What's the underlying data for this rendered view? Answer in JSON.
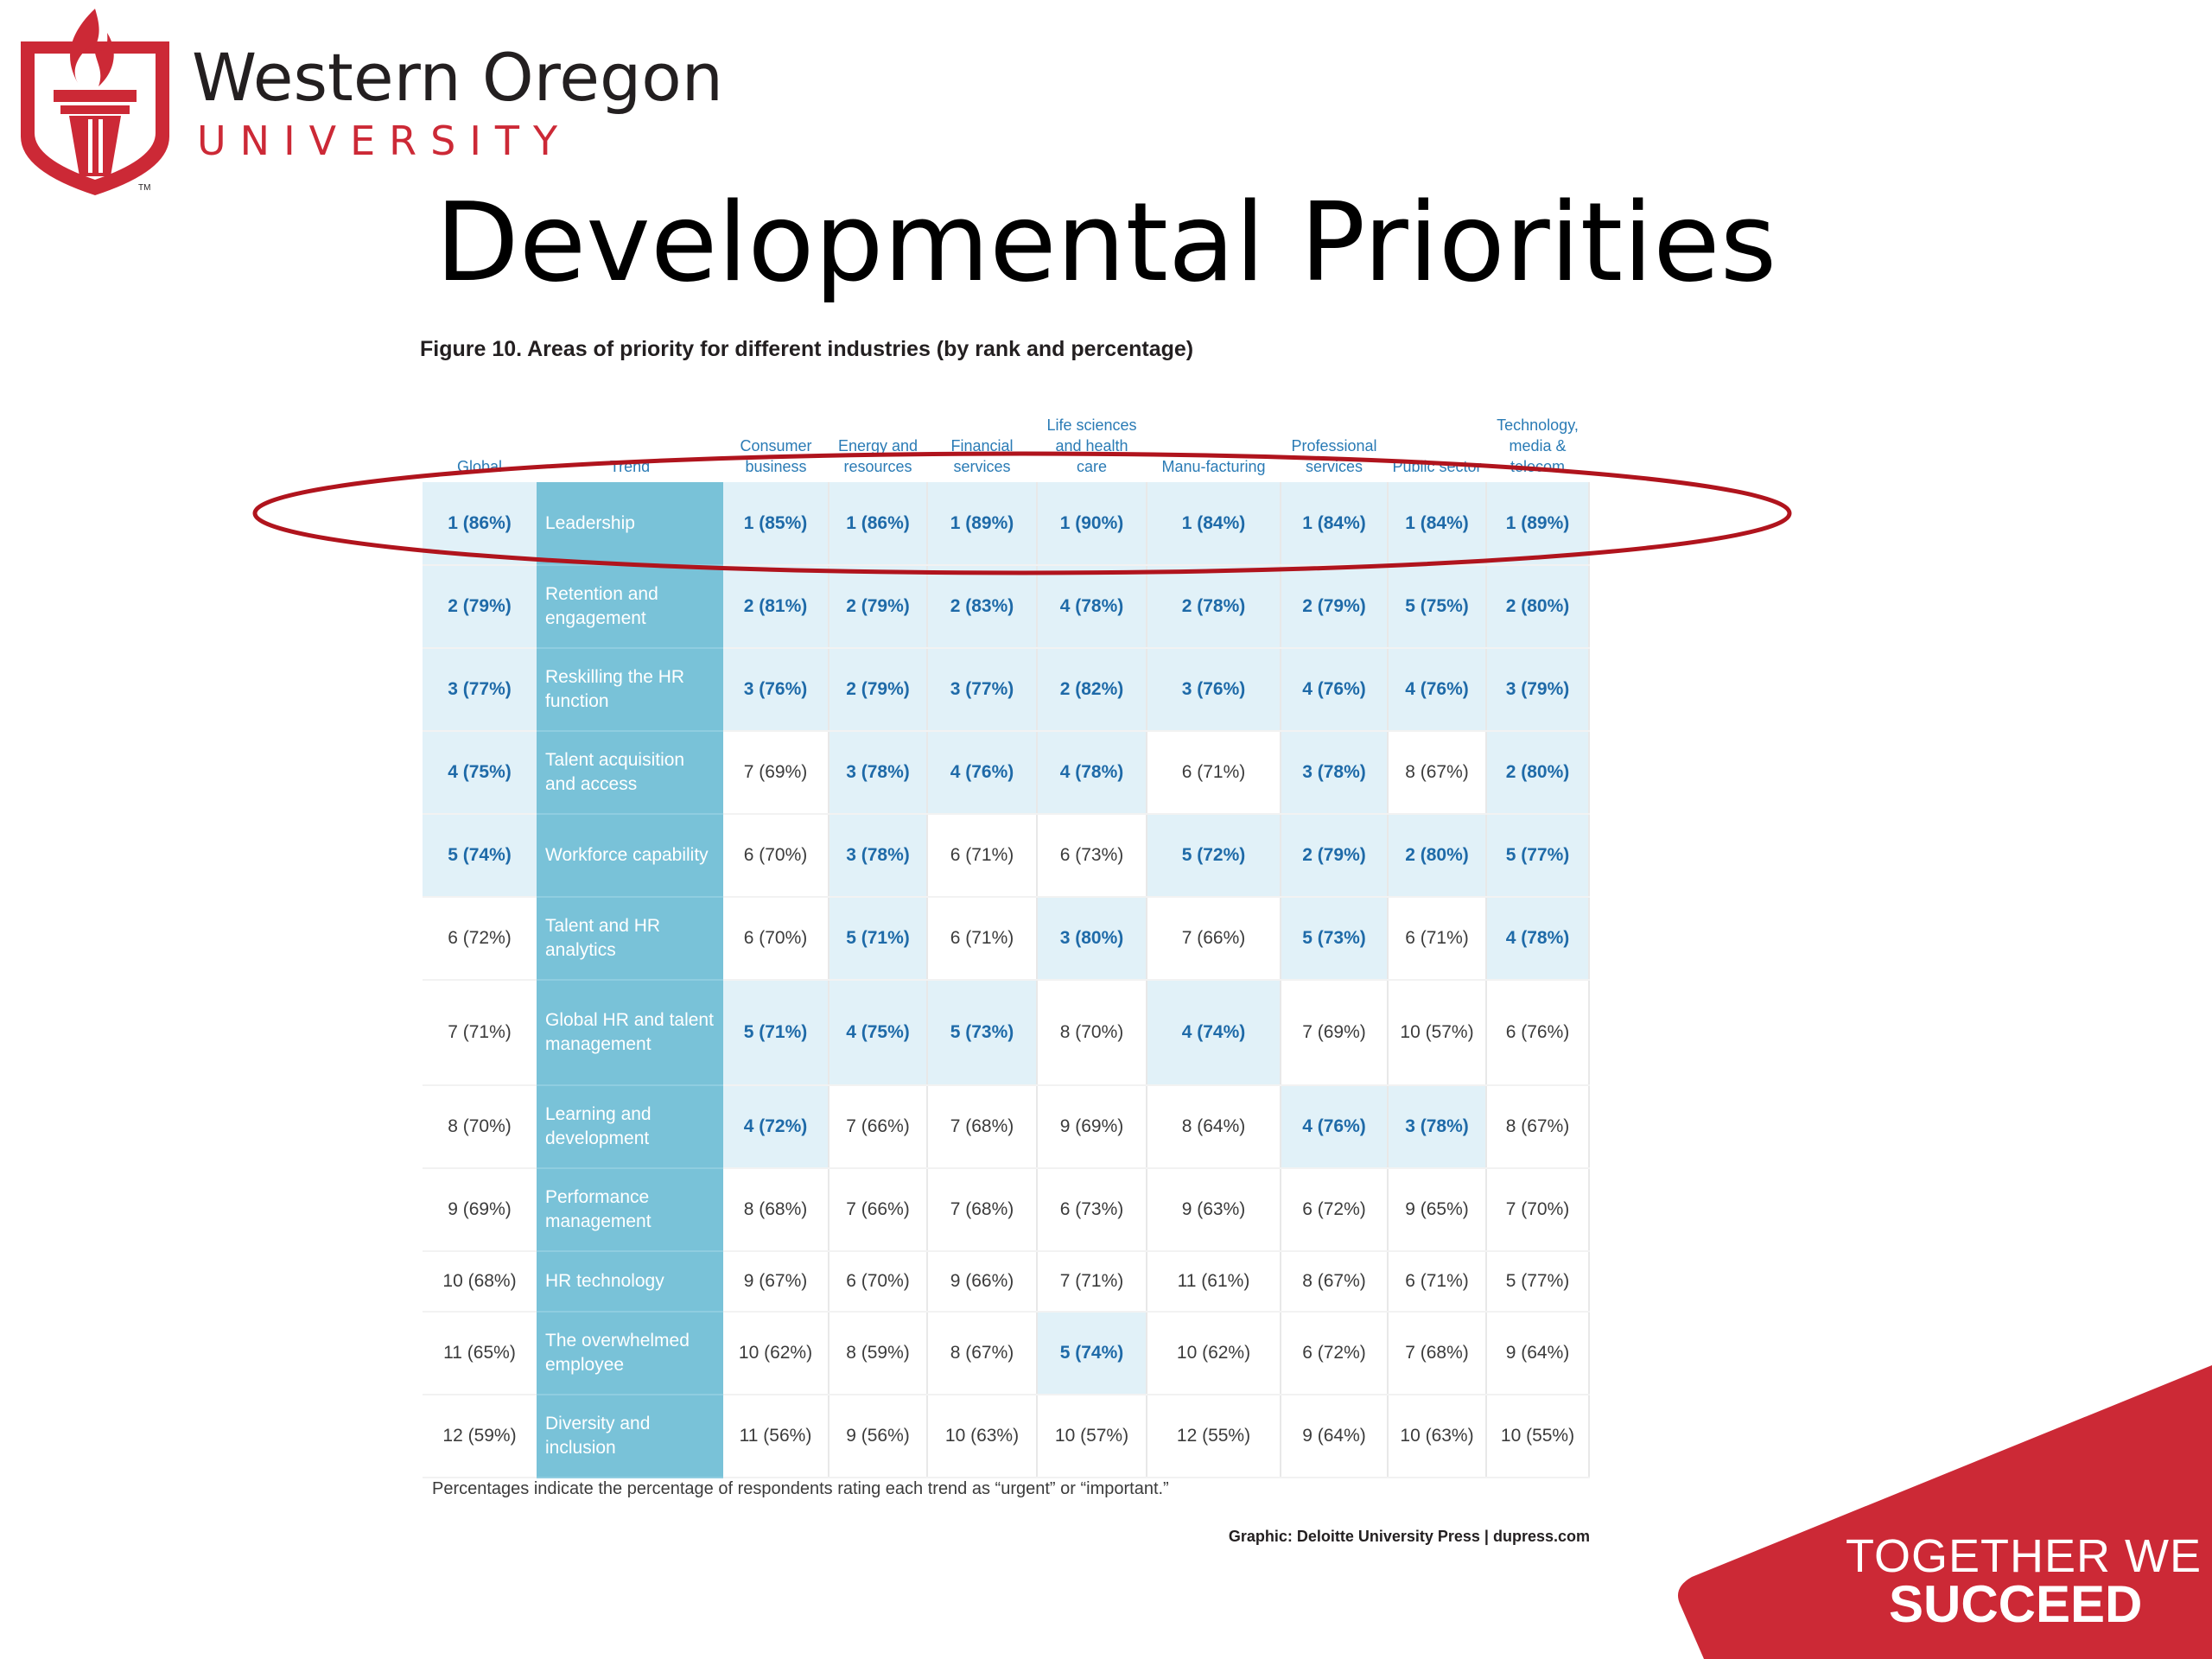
{
  "logo": {
    "name": "Western Oregon",
    "sub": "UNIVERSITY",
    "tm": "TM",
    "icon": "torch-shield-icon",
    "color": "#cc2936"
  },
  "title": "Developmental Priorities",
  "figure": {
    "caption": "Figure 10. Areas of priority for different industries (by rank and percentage)",
    "headers": {
      "global": "Global",
      "trend": "Trend",
      "industries": [
        "Consumer business",
        "Energy and resources",
        "Financial services",
        "Life sciences and health care",
        "Manu-facturing",
        "Professional services",
        "Public sector",
        "Technology, media & telecom"
      ]
    },
    "rows": [
      {
        "global": "1 (86%)",
        "global_hl": true,
        "trend": "Leadership",
        "cells": [
          "1 (85%)",
          "1 (86%)",
          "1 (89%)",
          "1 (90%)",
          "1 (84%)",
          "1 (84%)",
          "1 (84%)",
          "1 (89%)"
        ],
        "hl": [
          true,
          true,
          true,
          true,
          true,
          true,
          true,
          true
        ]
      },
      {
        "global": "2 (79%)",
        "global_hl": true,
        "trend": "Retention and engagement",
        "cells": [
          "2 (81%)",
          "2 (79%)",
          "2 (83%)",
          "4 (78%)",
          "2 (78%)",
          "2 (79%)",
          "5 (75%)",
          "2 (80%)"
        ],
        "hl": [
          true,
          true,
          true,
          true,
          true,
          true,
          true,
          true
        ]
      },
      {
        "global": "3 (77%)",
        "global_hl": true,
        "trend": "Reskilling the HR function",
        "cells": [
          "3 (76%)",
          "2 (79%)",
          "3 (77%)",
          "2 (82%)",
          "3 (76%)",
          "4 (76%)",
          "4 (76%)",
          "3 (79%)"
        ],
        "hl": [
          true,
          true,
          true,
          true,
          true,
          true,
          true,
          true
        ]
      },
      {
        "global": "4 (75%)",
        "global_hl": true,
        "trend": "Talent acquisition and access",
        "cells": [
          "7 (69%)",
          "3 (78%)",
          "4 (76%)",
          "4 (78%)",
          "6 (71%)",
          "3 (78%)",
          "8 (67%)",
          "2 (80%)"
        ],
        "hl": [
          false,
          true,
          true,
          true,
          false,
          true,
          false,
          true
        ]
      },
      {
        "global": "5 (74%)",
        "global_hl": true,
        "trend": "Workforce capability",
        "cells": [
          "6 (70%)",
          "3 (78%)",
          "6 (71%)",
          "6 (73%)",
          "5 (72%)",
          "2 (79%)",
          "2 (80%)",
          "5 (77%)"
        ],
        "hl": [
          false,
          true,
          false,
          false,
          true,
          true,
          true,
          true
        ]
      },
      {
        "global": "6 (72%)",
        "global_hl": false,
        "trend": "Talent and HR analytics",
        "cells": [
          "6 (70%)",
          "5 (71%)",
          "6 (71%)",
          "3 (80%)",
          "7 (66%)",
          "5 (73%)",
          "6 (71%)",
          "4 (78%)"
        ],
        "hl": [
          false,
          true,
          false,
          true,
          false,
          true,
          false,
          true
        ]
      },
      {
        "global": "7 (71%)",
        "global_hl": false,
        "trend": "Global HR and talent management",
        "cells": [
          "5 (71%)",
          "4 (75%)",
          "5 (73%)",
          "8 (70%)",
          "4 (74%)",
          "7 (69%)",
          "10 (57%)",
          "6 (76%)"
        ],
        "hl": [
          true,
          true,
          true,
          false,
          true,
          false,
          false,
          false
        ]
      },
      {
        "global": "8 (70%)",
        "global_hl": false,
        "trend": "Learning and development",
        "cells": [
          "4 (72%)",
          "7 (66%)",
          "7 (68%)",
          "9 (69%)",
          "8 (64%)",
          "4 (76%)",
          "3 (78%)",
          "8 (67%)"
        ],
        "hl": [
          true,
          false,
          false,
          false,
          false,
          true,
          true,
          false
        ]
      },
      {
        "global": "9 (69%)",
        "global_hl": false,
        "trend": "Performance management",
        "cells": [
          "8 (68%)",
          "7 (66%)",
          "7 (68%)",
          "6 (73%)",
          "9 (63%)",
          "6 (72%)",
          "9 (65%)",
          "7 (70%)"
        ],
        "hl": [
          false,
          false,
          false,
          false,
          false,
          false,
          false,
          false
        ]
      },
      {
        "global": "10 (68%)",
        "global_hl": false,
        "trend": "HR technology",
        "cells": [
          "9 (67%)",
          "6 (70%)",
          "9 (66%)",
          "7 (71%)",
          "11 (61%)",
          "8 (67%)",
          "6 (71%)",
          "5 (77%)"
        ],
        "hl": [
          false,
          false,
          false,
          false,
          false,
          false,
          false,
          false
        ]
      },
      {
        "global": "11 (65%)",
        "global_hl": false,
        "trend": "The overwhelmed employee",
        "cells": [
          "10 (62%)",
          "8 (59%)",
          "8 (67%)",
          "5 (74%)",
          "10 (62%)",
          "6 (72%)",
          "7 (68%)",
          "9 (64%)"
        ],
        "hl": [
          false,
          false,
          false,
          true,
          false,
          false,
          false,
          false
        ]
      },
      {
        "global": "12 (59%)",
        "global_hl": false,
        "trend": "Diversity and inclusion",
        "cells": [
          "11 (56%)",
          "9 (56%)",
          "10 (63%)",
          "10 (57%)",
          "12 (55%)",
          "9 (64%)",
          "10 (63%)",
          "10 (55%)"
        ],
        "hl": [
          false,
          false,
          false,
          false,
          false,
          false,
          false,
          false
        ]
      }
    ],
    "note": "Percentages indicate the percentage of respondents rating each trend as “urgent” or “important.”",
    "source": "Graphic: Deloitte University Press | dupress.com",
    "colors": {
      "trend_bg": "#79c2d8",
      "highlight_bg": "#e1f1f8",
      "highlight_text": "#1e6aa8",
      "header_text": "#2a7bb5",
      "ellipse": "#b0141d"
    }
  },
  "footer": {
    "line1": "TOGETHER WE",
    "line2": "SUCCEED",
    "color": "#cc2936"
  }
}
